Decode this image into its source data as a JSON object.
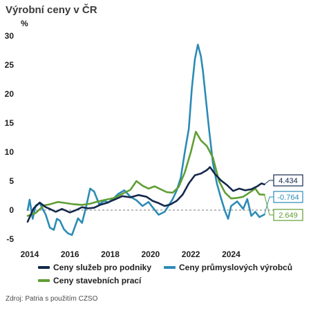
{
  "title": "Výrobní ceny v ČR",
  "source": "Zdroj: Patria s použitím CZSO",
  "chart_data": {
    "type": "line",
    "ylabel": "%",
    "xlim": [
      2013.9,
      2025.7
    ],
    "ylim": [
      -5,
      30
    ],
    "x_ticks": [
      2014,
      2016,
      2018,
      2020,
      2022,
      2024
    ],
    "y_ticks": [
      -5,
      0,
      5,
      10,
      15,
      20,
      25,
      30
    ],
    "zero_line": "dashed",
    "grid": false,
    "legend_position": "bottom",
    "series": [
      {
        "name": "Ceny služeb pro podniky",
        "color": "#14284b",
        "end_label": "4.434",
        "x": [
          2013.9,
          2014.2,
          2014.5,
          2014.8,
          2015.0,
          2015.3,
          2015.6,
          2016.0,
          2016.3,
          2016.6,
          2016.9,
          2017.2,
          2017.5,
          2017.8,
          2018.2,
          2018.6,
          2019.0,
          2019.4,
          2019.8,
          2020.1,
          2020.4,
          2020.7,
          2021.0,
          2021.3,
          2021.6,
          2021.9,
          2022.2,
          2022.5,
          2022.8,
          2022.95,
          2023.2,
          2023.5,
          2023.8,
          2024.1,
          2024.4,
          2024.7,
          2025.0,
          2025.3,
          2025.5,
          2025.65
        ],
        "y": [
          -2.0,
          0.3,
          1.3,
          0.5,
          0.2,
          -0.3,
          0.2,
          -0.4,
          0.0,
          0.5,
          0.3,
          0.4,
          0.9,
          1.2,
          1.8,
          2.4,
          2.2,
          2.6,
          2.3,
          1.6,
          1.2,
          0.7,
          1.0,
          1.6,
          2.7,
          4.6,
          6.0,
          6.3,
          6.9,
          7.4,
          6.2,
          5.1,
          4.3,
          3.3,
          3.7,
          3.4,
          3.6,
          4.1,
          4.6,
          4.434
        ]
      },
      {
        "name": "Ceny průmyslových výrobců",
        "color": "#2b8bb5",
        "end_label": "-0.764",
        "x": [
          2013.9,
          2014.0,
          2014.15,
          2014.3,
          2014.5,
          2014.8,
          2015.0,
          2015.2,
          2015.35,
          2015.5,
          2015.7,
          2015.9,
          2016.1,
          2016.4,
          2016.6,
          2016.8,
          2017.0,
          2017.2,
          2017.45,
          2017.7,
          2017.9,
          2018.1,
          2018.4,
          2018.7,
          2019.0,
          2019.3,
          2019.6,
          2019.9,
          2020.1,
          2020.4,
          2020.7,
          2020.9,
          2021.1,
          2021.3,
          2021.5,
          2021.7,
          2021.9,
          2022.05,
          2022.2,
          2022.35,
          2022.5,
          2022.6,
          2022.75,
          2022.9,
          2023.1,
          2023.3,
          2023.5,
          2023.7,
          2023.85,
          2024.0,
          2024.3,
          2024.6,
          2024.8,
          2025.0,
          2025.2,
          2025.4,
          2025.65
        ],
        "y": [
          0.0,
          1.8,
          -1.5,
          0.8,
          1.2,
          -0.8,
          -3.0,
          -3.4,
          -1.5,
          -1.8,
          -3.3,
          -4.0,
          -4.3,
          -1.4,
          -2.2,
          0.5,
          3.7,
          3.2,
          1.0,
          1.6,
          1.3,
          1.8,
          2.8,
          3.4,
          2.3,
          1.7,
          0.7,
          1.4,
          0.5,
          -0.8,
          -0.3,
          0.8,
          1.9,
          3.4,
          5.6,
          10.0,
          14.0,
          21.0,
          26.0,
          28.5,
          26.5,
          24.0,
          19.0,
          14.0,
          8.0,
          4.5,
          2.0,
          -0.2,
          -1.5,
          0.7,
          1.5,
          0.2,
          1.9,
          -1.0,
          -0.3,
          -1.2,
          -0.764
        ]
      },
      {
        "name": "Ceny stavebních prací",
        "color": "#5f9e33",
        "end_label": "2.649",
        "x": [
          2013.9,
          2014.3,
          2014.7,
          2015.0,
          2015.4,
          2015.8,
          2016.2,
          2016.6,
          2017.0,
          2017.4,
          2017.8,
          2018.2,
          2018.6,
          2019.0,
          2019.3,
          2019.6,
          2019.9,
          2020.2,
          2020.5,
          2020.8,
          2021.1,
          2021.4,
          2021.7,
          2022.0,
          2022.25,
          2022.5,
          2022.8,
          2023.1,
          2023.4,
          2023.7,
          2024.0,
          2024.3,
          2024.6,
          2024.9,
          2025.2,
          2025.4,
          2025.65
        ],
        "y": [
          -1.0,
          -0.5,
          0.8,
          1.0,
          1.4,
          1.2,
          1.0,
          0.9,
          1.1,
          1.5,
          1.8,
          2.1,
          2.8,
          3.5,
          5.0,
          4.2,
          3.7,
          4.1,
          3.6,
          3.1,
          3.0,
          4.0,
          6.5,
          10.0,
          13.5,
          12.0,
          11.0,
          9.0,
          5.0,
          3.0,
          2.0,
          2.1,
          2.3,
          3.0,
          3.7,
          2.7,
          2.649
        ]
      }
    ]
  }
}
